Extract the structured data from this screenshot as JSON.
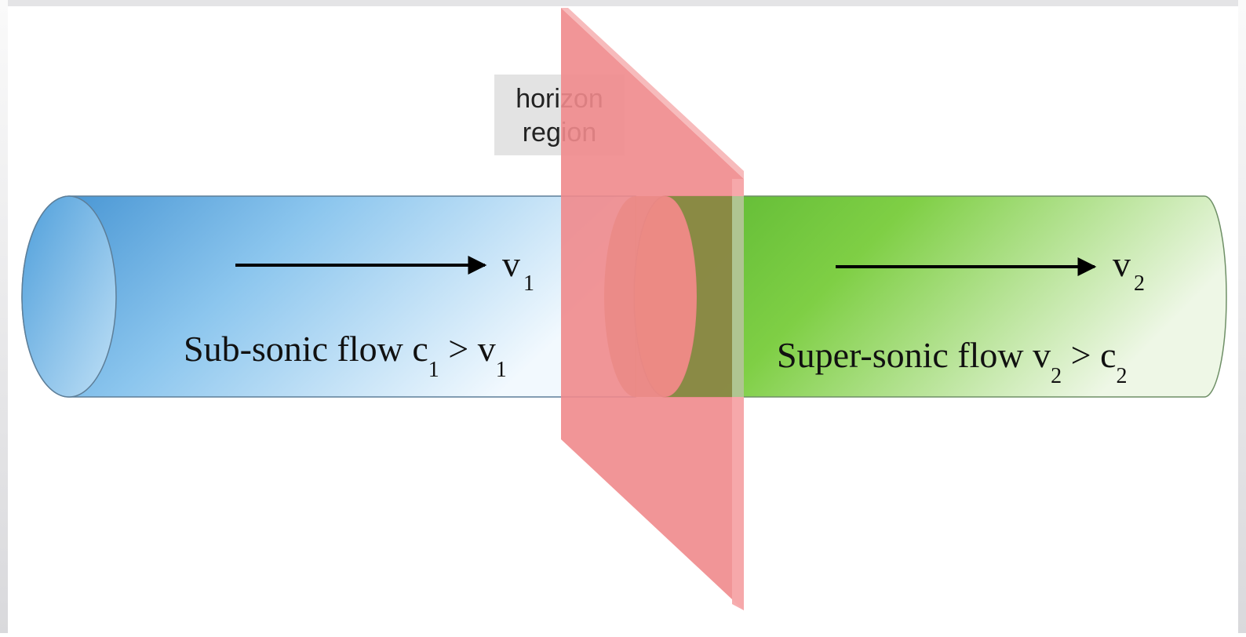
{
  "diagram": {
    "horizon_label": {
      "line1": "horizon",
      "line2": "region"
    },
    "left_pipe": {
      "velocity_symbol": "v",
      "velocity_subscript": "1",
      "caption": {
        "text": "Sub-sonic flow c",
        "sub1": "1",
        "middle": " > v",
        "sub2": "1"
      }
    },
    "right_pipe": {
      "velocity_symbol": "v",
      "velocity_subscript": "2",
      "caption": {
        "text": "Super-sonic flow v",
        "sub1": "2",
        "middle": " > c",
        "sub2": "2"
      }
    },
    "colors": {
      "subsonic_dark": "#4a9ad6",
      "subsonic_light": "#eaf5fd",
      "supersonic_dark": "#6cc43e",
      "supersonic_light": "#e6f3dc",
      "horizon_plane": "#f08a8c",
      "label_box": "#e3e3e3",
      "arrow": "#000000"
    }
  }
}
